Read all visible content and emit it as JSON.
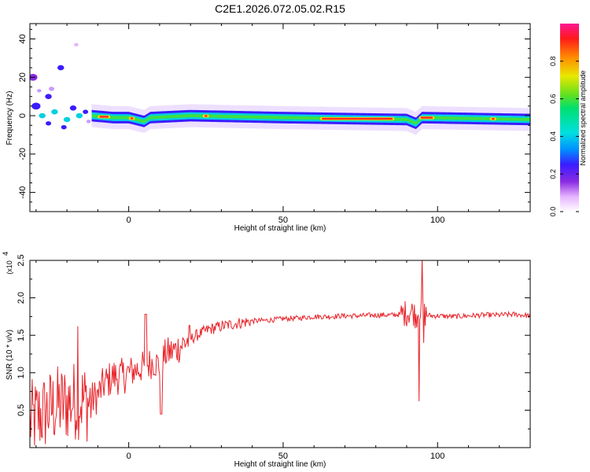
{
  "title": "C2E1.2026.072.05.02.R15",
  "chart_data": [
    {
      "type": "heatmap",
      "xlabel": "Height of straight line (km)",
      "ylabel": "Frequency (Hz)",
      "xlim": [
        -32,
        130
      ],
      "ylim": [
        -50,
        48
      ],
      "xticks": [
        0,
        50,
        100
      ],
      "yticks": [
        -40,
        -20,
        0,
        20,
        40
      ],
      "colorbar": {
        "label": "Normalized spectral amplitude",
        "range": [
          0,
          1
        ],
        "ticks": [
          "0.0",
          "0.2",
          "0.4",
          "0.6",
          "0.8"
        ]
      },
      "ridge": [
        {
          "x": -32,
          "f": 0
        },
        {
          "x": -12,
          "f": 0
        },
        {
          "x": -5,
          "f": -1
        },
        {
          "x": 0,
          "f": -1
        },
        {
          "x": 5,
          "f": -3
        },
        {
          "x": 7,
          "f": -1
        },
        {
          "x": 20,
          "f": 0
        },
        {
          "x": 50,
          "f": -1
        },
        {
          "x": 90,
          "f": -2
        },
        {
          "x": 93,
          "f": -4
        },
        {
          "x": 95,
          "f": -1
        },
        {
          "x": 130,
          "f": -2
        }
      ]
    },
    {
      "type": "line",
      "xlabel": "Height of straight line (km)",
      "ylabel": "SNR (10 * v/v)",
      "yscale_label": "(x10",
      "yscale_exp": "4",
      "xlim": [
        -32,
        130
      ],
      "ylim": [
        0,
        2.5
      ],
      "xticks": [
        0,
        50,
        100
      ],
      "yticks": [
        "0.5",
        "1.0",
        "1.5",
        "2.0",
        "2.5"
      ],
      "color": "#e8242a",
      "series": [
        {
          "x": [
            -32,
            -28,
            -24,
            -20,
            -16,
            -13,
            -10,
            -8,
            -5,
            -2,
            0,
            3,
            6,
            8,
            10,
            12,
            15,
            18,
            22,
            26,
            30,
            35,
            40,
            45,
            50,
            55,
            60,
            65,
            70,
            75,
            80,
            85,
            88,
            90,
            92,
            93,
            94,
            95,
            96,
            98,
            100,
            105,
            110,
            115,
            120,
            125,
            130
          ],
          "y": [
            0.35,
            0.45,
            0.55,
            0.6,
            0.65,
            0.6,
            0.7,
            0.85,
            0.95,
            0.95,
            1.0,
            1.05,
            1.1,
            1.15,
            1.1,
            1.25,
            1.3,
            1.4,
            1.5,
            1.58,
            1.62,
            1.66,
            1.69,
            1.7,
            1.72,
            1.73,
            1.75,
            1.75,
            1.76,
            1.76,
            1.77,
            1.77,
            1.78,
            1.8,
            1.82,
            1.75,
            1.85,
            1.8,
            1.78,
            1.76,
            1.76,
            1.75,
            1.76,
            1.77,
            1.77,
            1.78,
            1.76
          ]
        }
      ]
    }
  ]
}
